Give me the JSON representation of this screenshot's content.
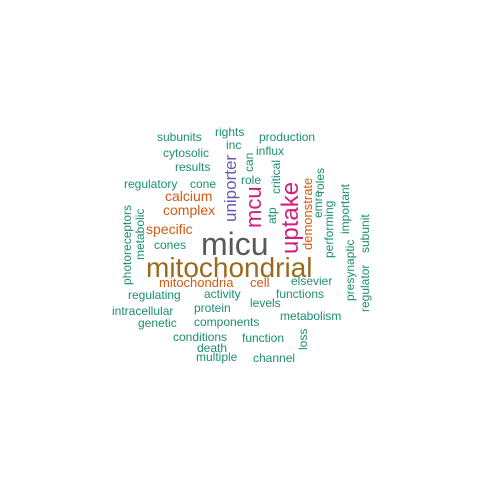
{
  "colors": {
    "grey": "#595959",
    "brown": "#9a6b1f",
    "magenta": "#d3207d",
    "purple": "#6a5aa8",
    "orange": "#d15a12",
    "teal": "#1b8f70"
  },
  "words": {
    "micu": "micu",
    "mitochondrial": "mitochondrial",
    "uptake": "uptake",
    "mcu": "mcu",
    "uniporter": "uniporter",
    "calcium": "calcium",
    "complex": "complex",
    "specific": "specific",
    "mitochondria": "mitochondria",
    "cell": "cell",
    "demonstrate": "demonstrate",
    "subunits": "subunits",
    "rights": "rights",
    "production": "production",
    "inc": "inc",
    "cytosolic": "cytosolic",
    "influx": "influx",
    "can": "can",
    "results": "results",
    "critical": "critical",
    "roles": "roles",
    "regulatory": "regulatory",
    "cone": "cone",
    "role": "role",
    "emre": "emre",
    "important": "important",
    "atp": "atp",
    "performing": "performing",
    "metabolic": "metabolic",
    "subunit": "subunit",
    "cones": "cones",
    "photoreceptors": "photoreceptors",
    "presynaptic": "presynaptic",
    "regulator": "regulator",
    "elsevier": "elsevier",
    "regulating": "regulating",
    "activity": "activity",
    "functions": "functions",
    "levels": "levels",
    "protein": "protein",
    "intracellular": "intracellular",
    "metabolism": "metabolism",
    "genetic": "genetic",
    "components": "components",
    "conditions": "conditions",
    "function": "function",
    "loss": "loss",
    "death": "death",
    "multiple": "multiple",
    "channel": "channel"
  }
}
